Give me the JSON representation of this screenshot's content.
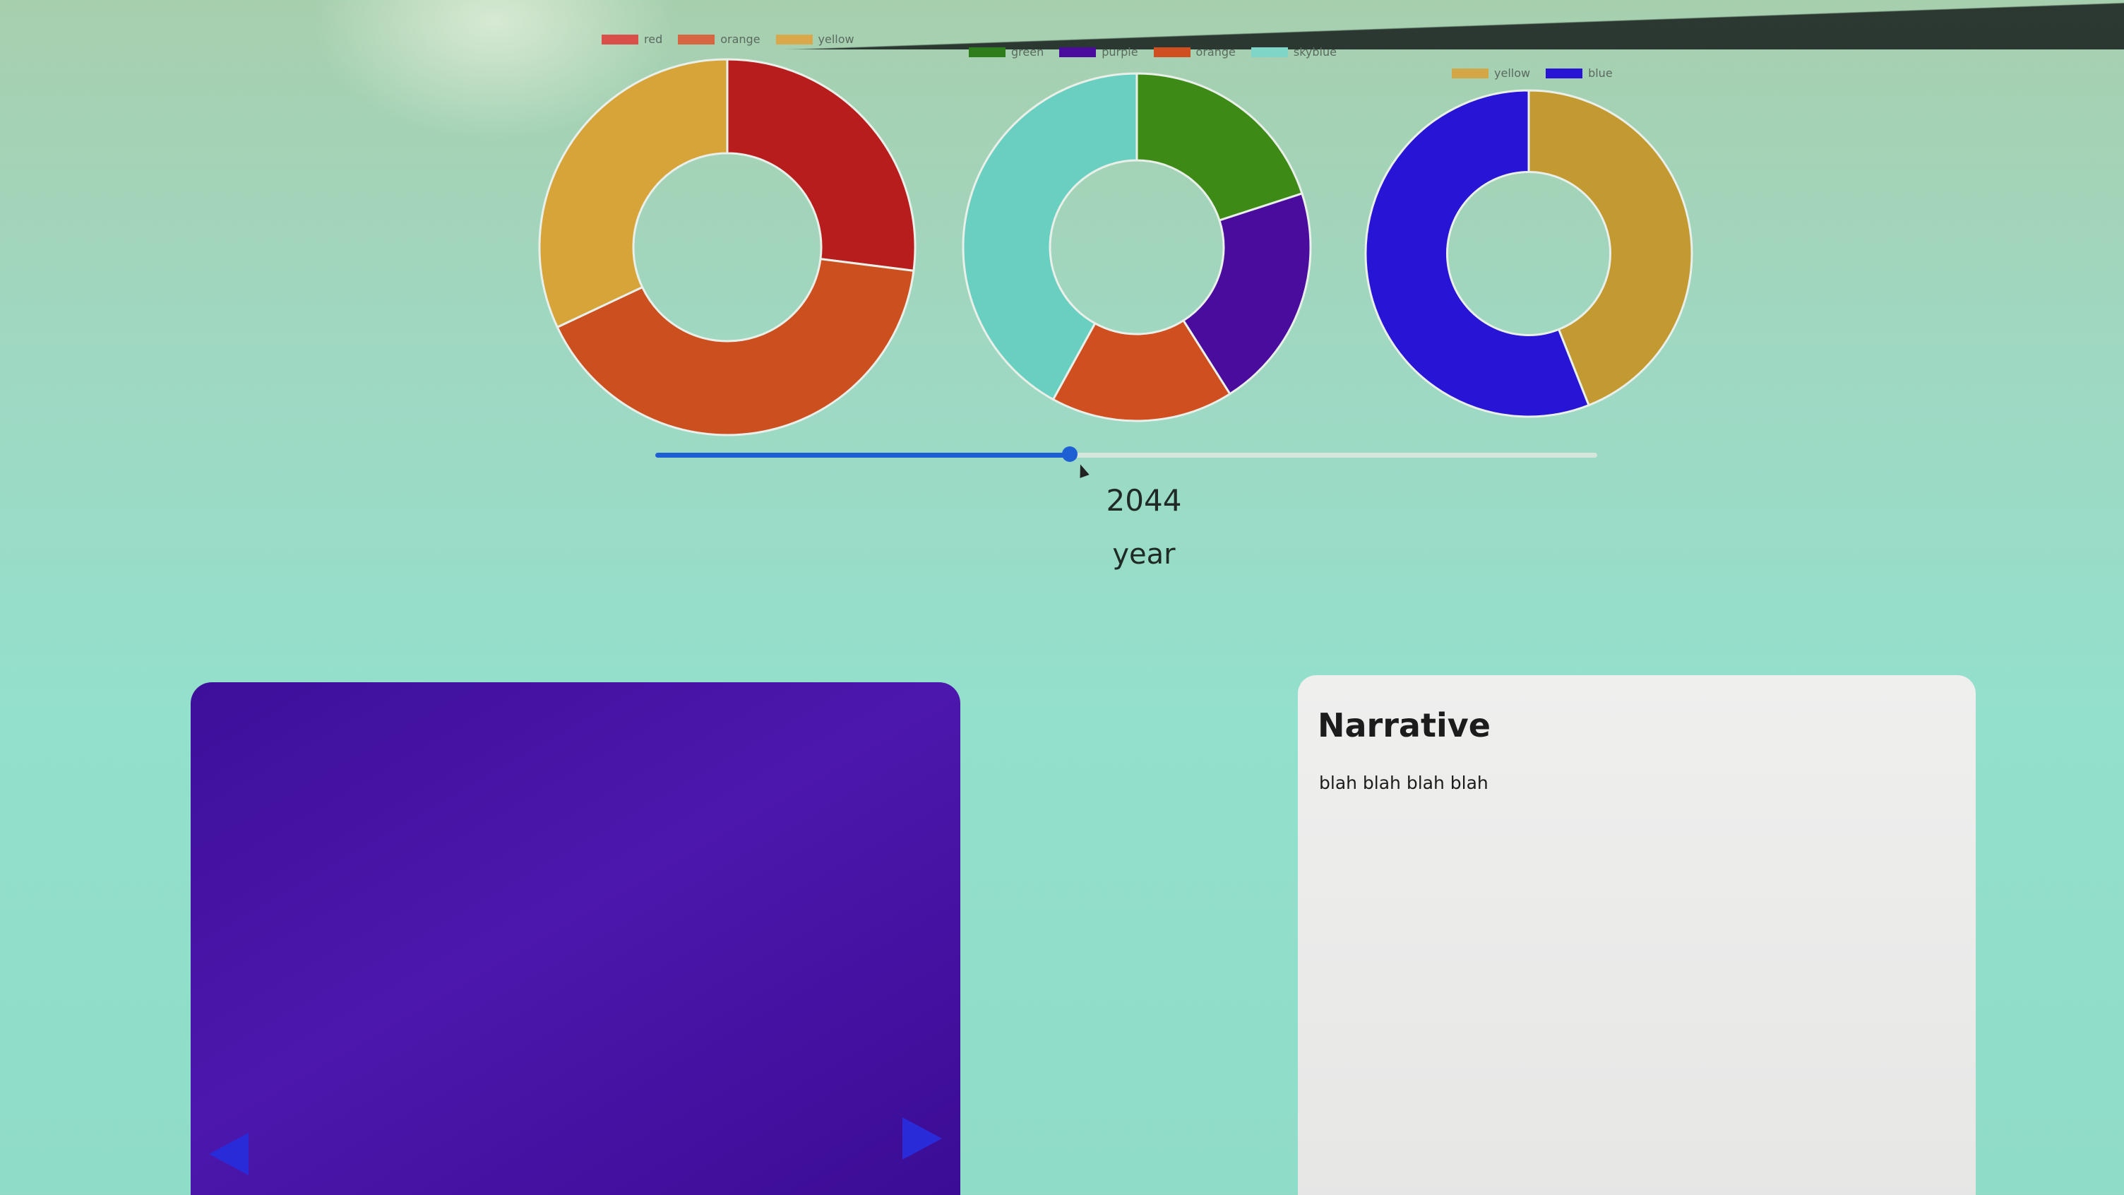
{
  "chart_data": [
    {
      "type": "pie",
      "legend": [
        "red",
        "orange",
        "yellow"
      ],
      "values": [
        27,
        41,
        32
      ],
      "colors": [
        "#b81d1d",
        "#cc4f1f",
        "#d7a43a"
      ]
    },
    {
      "type": "pie",
      "legend": [
        "green",
        "purple",
        "orange",
        "skyblue"
      ],
      "values": [
        20,
        21,
        17,
        42
      ],
      "colors": [
        "#3d8a16",
        "#4a0c9d",
        "#cf4f20",
        "#69cfc0"
      ]
    },
    {
      "type": "pie",
      "legend": [
        "yellow",
        "blue"
      ],
      "values": [
        44,
        56
      ],
      "colors": [
        "#c39a32",
        "#2714d4"
      ]
    }
  ],
  "slider": {
    "value": 2044,
    "fraction": 0.44
  },
  "year": {
    "value": "2044",
    "label": "year"
  },
  "narrative": {
    "title": "Narrative",
    "text": "blah blah blah blah"
  },
  "icons": {
    "prev": "triangle-left-icon",
    "next": "triangle-right-icon"
  }
}
